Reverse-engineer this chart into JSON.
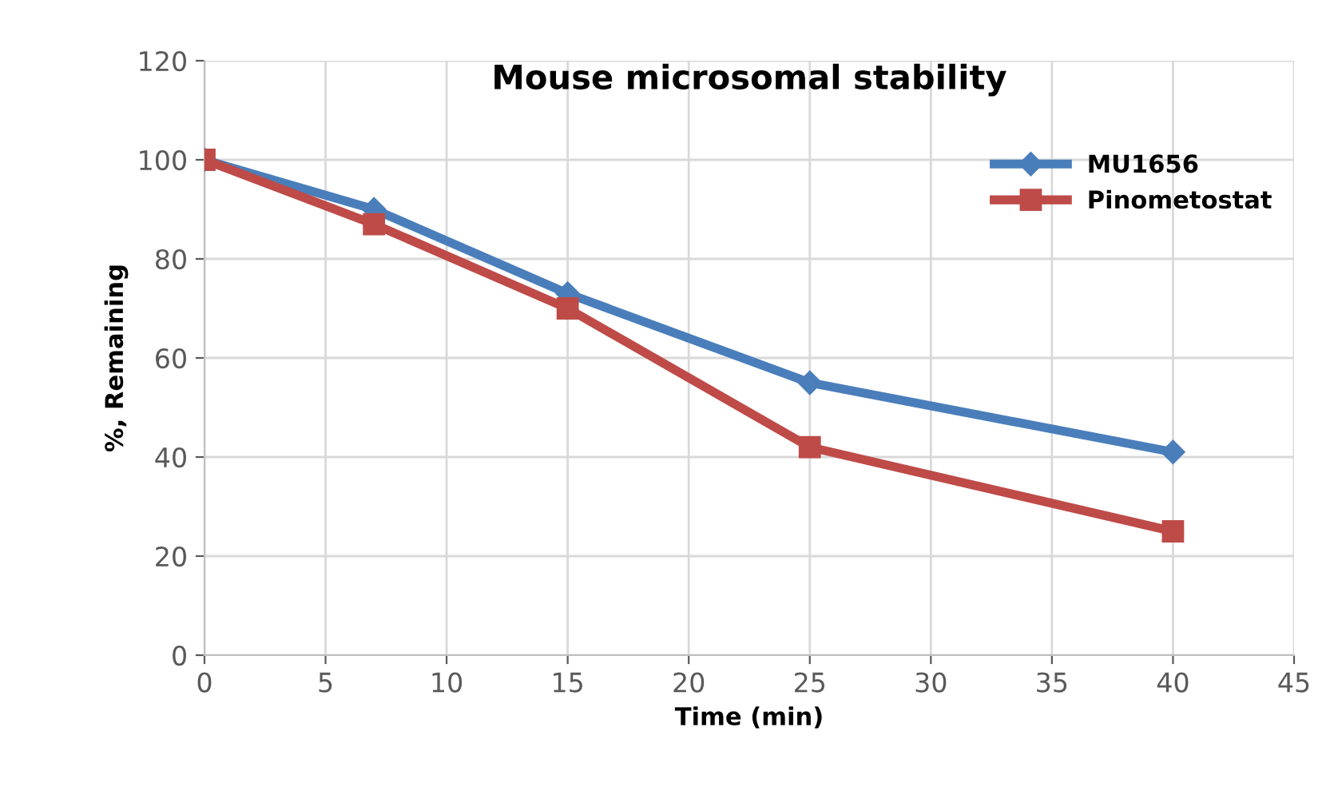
{
  "chart_data": {
    "type": "line",
    "title": "Mouse microsomal stability",
    "xlabel": "Time (min)",
    "ylabel": "%, Remaining",
    "x": [
      0,
      7,
      15,
      25,
      40
    ],
    "series": [
      {
        "name": "MU1656",
        "color": "#4a7ebb",
        "marker": "diamond",
        "values": [
          100,
          90,
          73,
          55,
          41
        ]
      },
      {
        "name": "Pinometostat",
        "color": "#be4b48",
        "marker": "square",
        "values": [
          100,
          87,
          70,
          42,
          25
        ]
      }
    ],
    "xlim": [
      0,
      45
    ],
    "xticks": [
      0,
      5,
      10,
      15,
      20,
      25,
      30,
      35,
      40,
      45
    ],
    "ylim": [
      0,
      120
    ],
    "yticks": [
      0,
      20,
      40,
      60,
      80,
      100,
      120
    ],
    "grid": true,
    "legend": "top right",
    "line_style": "solid"
  }
}
